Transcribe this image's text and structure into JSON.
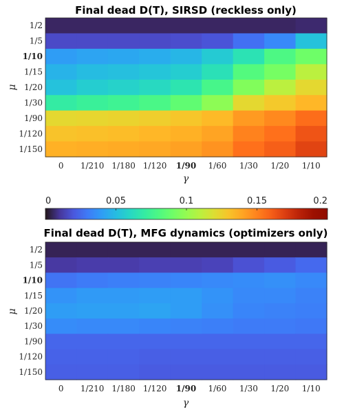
{
  "chart_data": [
    {
      "type": "heatmap",
      "title": "Final dead D(T), SIRSD (reckless only)",
      "xlabel": "γ",
      "ylabel": "μ",
      "x_categories": [
        "0",
        "1/210",
        "1/180",
        "1/120",
        "1/90",
        "1/60",
        "1/30",
        "1/20",
        "1/10"
      ],
      "y_categories": [
        "1/2",
        "1/5",
        "1/10",
        "1/15",
        "1/20",
        "1/30",
        "1/90",
        "1/120",
        "1/150"
      ],
      "x_bold": [
        "1/90"
      ],
      "y_bold": [
        "1/10"
      ],
      "values": [
        [
          0.005,
          0.005,
          0.005,
          0.005,
          0.005,
          0.005,
          0.005,
          0.005,
          0.006
        ],
        [
          0.016,
          0.016,
          0.016,
          0.016,
          0.017,
          0.019,
          0.027,
          0.034,
          0.052
        ],
        [
          0.04,
          0.042,
          0.043,
          0.045,
          0.048,
          0.055,
          0.065,
          0.08,
          0.09
        ],
        [
          0.047,
          0.05,
          0.051,
          0.053,
          0.056,
          0.064,
          0.082,
          0.092,
          0.11
        ],
        [
          0.052,
          0.056,
          0.058,
          0.061,
          0.066,
          0.078,
          0.095,
          0.11,
          0.122
        ],
        [
          0.07,
          0.073,
          0.075,
          0.079,
          0.086,
          0.098,
          0.122,
          0.128,
          0.134
        ],
        [
          0.122,
          0.123,
          0.124,
          0.126,
          0.129,
          0.133,
          0.143,
          0.148,
          0.156
        ],
        [
          0.13,
          0.131,
          0.132,
          0.134,
          0.136,
          0.14,
          0.15,
          0.155,
          0.163
        ],
        [
          0.136,
          0.137,
          0.138,
          0.139,
          0.141,
          0.145,
          0.155,
          0.16,
          0.168
        ]
      ]
    },
    {
      "type": "heatmap",
      "title": "Final dead D(T), MFG dynamics (optimizers only)",
      "xlabel": "γ",
      "ylabel": "μ",
      "x_categories": [
        "0",
        "1/210",
        "1/180",
        "1/120",
        "1/90",
        "1/60",
        "1/30",
        "1/20",
        "1/10"
      ],
      "y_categories": [
        "1/2",
        "1/5",
        "1/10",
        "1/15",
        "1/20",
        "1/30",
        "1/90",
        "1/120",
        "1/150"
      ],
      "x_bold": [
        "1/90"
      ],
      "y_bold": [
        "1/10"
      ],
      "values": [
        [
          0.004,
          0.004,
          0.004,
          0.004,
          0.004,
          0.004,
          0.004,
          0.004,
          0.004
        ],
        [
          0.011,
          0.012,
          0.012,
          0.013,
          0.013,
          0.014,
          0.018,
          0.021,
          0.025
        ],
        [
          0.028,
          0.03,
          0.031,
          0.032,
          0.033,
          0.034,
          0.035,
          0.036,
          0.034
        ],
        [
          0.037,
          0.039,
          0.039,
          0.04,
          0.04,
          0.037,
          0.034,
          0.034,
          0.032
        ],
        [
          0.04,
          0.041,
          0.041,
          0.042,
          0.04,
          0.036,
          0.033,
          0.032,
          0.031
        ],
        [
          0.035,
          0.034,
          0.034,
          0.033,
          0.032,
          0.031,
          0.03,
          0.03,
          0.029
        ],
        [
          0.024,
          0.024,
          0.024,
          0.024,
          0.024,
          0.024,
          0.024,
          0.024,
          0.024
        ],
        [
          0.023,
          0.023,
          0.023,
          0.022,
          0.022,
          0.022,
          0.022,
          0.022,
          0.022
        ],
        [
          0.022,
          0.022,
          0.022,
          0.021,
          0.021,
          0.021,
          0.021,
          0.021,
          0.021
        ]
      ]
    }
  ],
  "colorbar": {
    "min": 0,
    "max": 0.2,
    "ticks": [
      0,
      0.05,
      0.1,
      0.15,
      0.2
    ],
    "tick_labels": [
      "0",
      "0.05",
      "0.1",
      "0.15",
      "0.2"
    ],
    "colormap": "turbo"
  }
}
